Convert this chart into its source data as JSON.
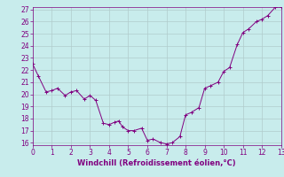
{
  "x": [
    0,
    0.3,
    0.7,
    1.0,
    1.3,
    1.7,
    2.0,
    2.3,
    2.7,
    3.0,
    3.3,
    3.7,
    4.0,
    4.3,
    4.5,
    4.7,
    5.0,
    5.3,
    5.7,
    6.0,
    6.3,
    6.7,
    7.0,
    7.3,
    7.7,
    8.0,
    8.3,
    8.7,
    9.0,
    9.3,
    9.7,
    10.0,
    10.3,
    10.7,
    11.0,
    11.3,
    11.7,
    12.0,
    12.3,
    12.7,
    13.0
  ],
  "y": [
    22.5,
    21.5,
    20.2,
    20.3,
    20.5,
    19.9,
    20.2,
    20.3,
    19.6,
    19.9,
    19.5,
    17.6,
    17.5,
    17.7,
    17.8,
    17.3,
    17.0,
    17.0,
    17.2,
    16.2,
    16.3,
    16.0,
    15.9,
    16.0,
    16.5,
    18.3,
    18.5,
    18.9,
    20.5,
    20.7,
    21.0,
    21.9,
    22.2,
    24.1,
    25.1,
    25.4,
    26.0,
    26.2,
    26.5,
    27.2,
    27.2
  ],
  "line_color": "#800080",
  "marker_color": "#800080",
  "background_color": "#c8ecec",
  "grid_color": "#b0cccc",
  "xlabel": "Windchill (Refroidissement éolien,°C)",
  "xlim": [
    0,
    13
  ],
  "ylim": [
    15.8,
    27.2
  ],
  "xticks": [
    0,
    1,
    2,
    3,
    4,
    5,
    6,
    7,
    8,
    9,
    10,
    11,
    12,
    13
  ],
  "yticks": [
    16,
    17,
    18,
    19,
    20,
    21,
    22,
    23,
    24,
    25,
    26,
    27
  ],
  "xlabel_color": "#800080",
  "tick_color": "#800080",
  "tick_labelsize": 5.5,
  "xlabel_fontsize": 6.0,
  "linewidth": 0.7,
  "markersize": 2.5
}
